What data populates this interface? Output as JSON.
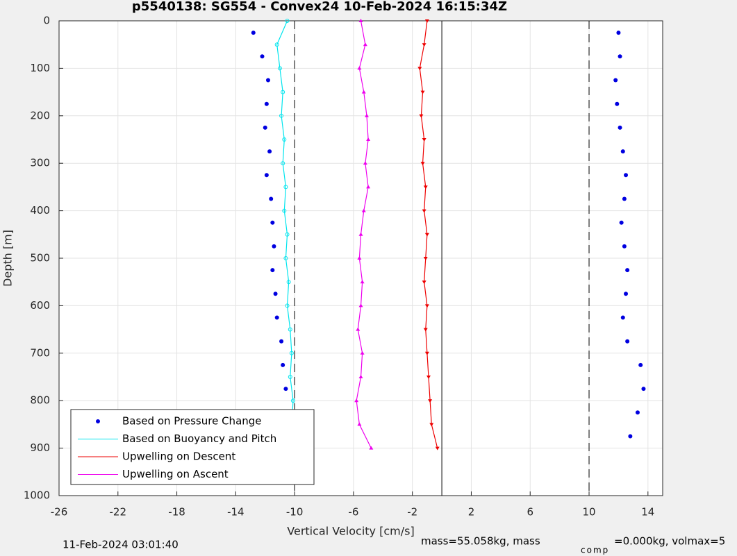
{
  "chart_data": {
    "type": "line",
    "title": "p5540138: SG554 - Convex24 10-Feb-2024 16:15:34Z",
    "xlabel": "Vertical Velocity [cm/s]",
    "ylabel": "Depth [m]",
    "xlim": [
      -26,
      15
    ],
    "ylim": [
      1000,
      0
    ],
    "xticks": [
      -26,
      -22,
      -18,
      -14,
      -10,
      -6,
      -2,
      2,
      6,
      10,
      14
    ],
    "yticks": [
      0,
      100,
      200,
      300,
      400,
      500,
      600,
      700,
      800,
      900,
      1000
    ],
    "grid": true,
    "legend": "lower left",
    "vlines": [
      {
        "x": -10,
        "style": "dashed"
      },
      {
        "x": 0,
        "style": "solid"
      },
      {
        "x": 10,
        "style": "dashed"
      }
    ],
    "series": [
      {
        "name": "Based on Pressure Change",
        "color": "#0000e0",
        "marker": "dot",
        "line": false,
        "x": [
          -12.8,
          -12.2,
          -11.8,
          -11.9,
          -12,
          -11.7,
          -11.9,
          -11.6,
          -11.5,
          -11.4,
          -11.5,
          -11.3,
          -11.2,
          -10.9,
          -10.8,
          -10.6,
          -10.7,
          -10.5,
          12.8,
          13.3,
          13.7,
          13.5,
          12.6,
          12.3,
          12.5,
          12.6,
          12.4,
          12.2,
          12.4,
          12.5,
          12.3,
          12.1,
          11.9,
          11.8,
          12.1,
          12
        ],
        "y": [
          25,
          75,
          125,
          175,
          225,
          275,
          325,
          375,
          425,
          475,
          525,
          575,
          625,
          675,
          725,
          775,
          825,
          875,
          875,
          825,
          775,
          725,
          675,
          625,
          575,
          525,
          475,
          425,
          375,
          325,
          275,
          225,
          175,
          125,
          75,
          25
        ]
      },
      {
        "name": "Based on Buoyancy and Pitch",
        "color": "#00e5ee",
        "marker": "circle",
        "line": true,
        "x": [
          -10.5,
          -11.2,
          -11,
          -10.8,
          -10.9,
          -10.7,
          -10.8,
          -10.6,
          -10.7,
          -10.5,
          -10.6,
          -10.4,
          -10.5,
          -10.3,
          -10.2,
          -10.3,
          -10.1,
          -10.2,
          -10.6
        ],
        "y": [
          0,
          50,
          100,
          150,
          200,
          250,
          300,
          350,
          400,
          450,
          500,
          550,
          600,
          650,
          700,
          750,
          800,
          850,
          900
        ]
      },
      {
        "name": "Upwelling on Descent",
        "color": "#ee0000",
        "marker": "tri-down",
        "line": true,
        "x": [
          -1,
          -1.2,
          -1.5,
          -1.3,
          -1.4,
          -1.2,
          -1.3,
          -1.1,
          -1.2,
          -1,
          -1.1,
          -1.2,
          -1,
          -1.1,
          -1,
          -0.9,
          -0.8,
          -0.7,
          -0.3
        ],
        "y": [
          0,
          50,
          100,
          150,
          200,
          250,
          300,
          350,
          400,
          450,
          500,
          550,
          600,
          650,
          700,
          750,
          800,
          850,
          900
        ]
      },
      {
        "name": "Upwelling on Ascent",
        "color": "#ee00ee",
        "marker": "tri-up",
        "line": true,
        "x": [
          -5.5,
          -5.2,
          -5.6,
          -5.3,
          -5.1,
          -5,
          -5.2,
          -5,
          -5.3,
          -5.5,
          -5.6,
          -5.4,
          -5.5,
          -5.7,
          -5.4,
          -5.5,
          -5.8,
          -5.6,
          -4.8
        ],
        "y": [
          0,
          50,
          100,
          150,
          200,
          250,
          300,
          350,
          400,
          450,
          500,
          550,
          600,
          650,
          700,
          750,
          800,
          850,
          900
        ]
      }
    ],
    "footer_left": "11-Feb-2024 03:01:40",
    "footer_mass": "mass=55.058kg, mass",
    "footer_sub": "comp",
    "footer_rest": "=0.000kg, volmax=5"
  }
}
